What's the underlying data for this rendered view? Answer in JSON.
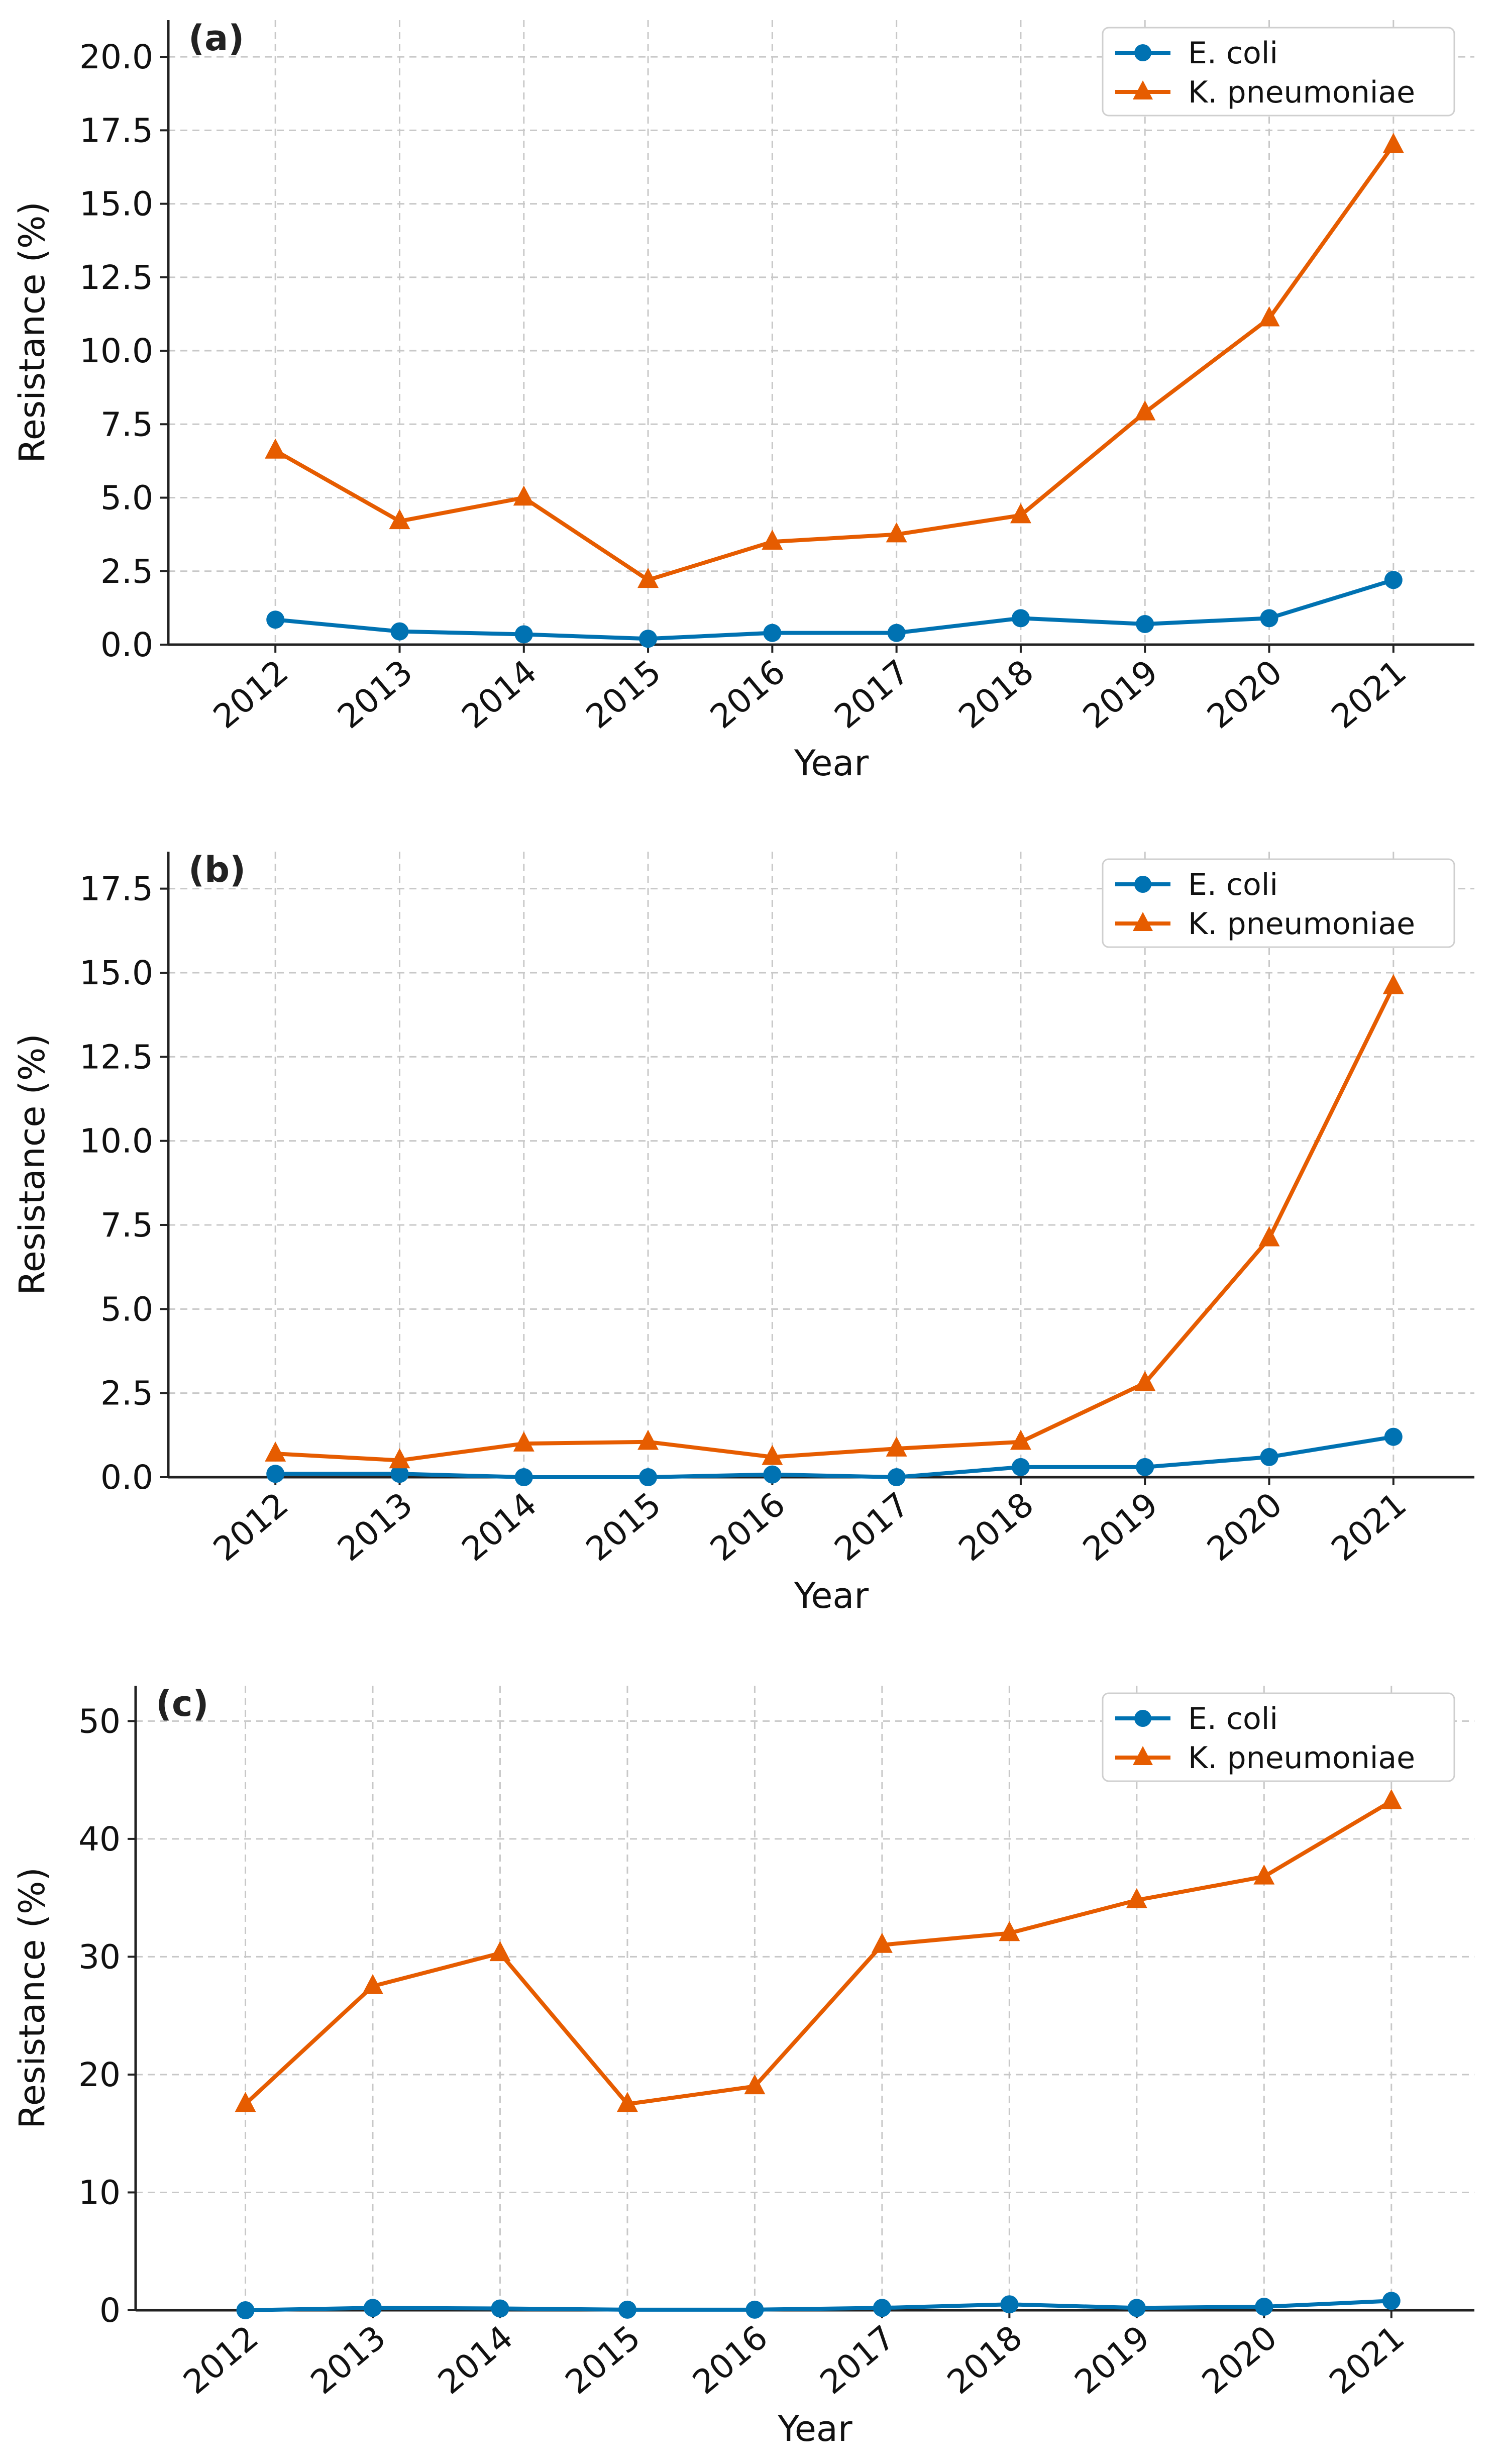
{
  "chart_data": [
    {
      "type": "line",
      "panel_label": "(a)",
      "xlabel": "Year",
      "ylabel": "Resistance (%)",
      "categories": [
        "2012",
        "2013",
        "2014",
        "2015",
        "2016",
        "2017",
        "2018",
        "2019",
        "2020",
        "2021"
      ],
      "ylim": [
        0,
        21.25
      ],
      "yticks": [
        "0.0",
        "2.5",
        "5.0",
        "7.5",
        "10.0",
        "12.5",
        "15.0",
        "17.5",
        "20.0"
      ],
      "grid": true,
      "legend_position": "top-right",
      "series": [
        {
          "name": "E. coli",
          "color": "#0072b2",
          "marker": "circle",
          "values": [
            0.85,
            0.45,
            0.35,
            0.2,
            0.4,
            0.4,
            0.9,
            0.7,
            0.9,
            2.2
          ]
        },
        {
          "name": "K. pneumoniae",
          "color": "#e65c00",
          "marker": "triangle",
          "values": [
            6.6,
            4.2,
            5.0,
            2.2,
            3.5,
            3.75,
            4.4,
            7.9,
            11.1,
            17.0
          ]
        }
      ]
    },
    {
      "type": "line",
      "panel_label": "(b)",
      "xlabel": "Year",
      "ylabel": "Resistance (%)",
      "categories": [
        "2012",
        "2013",
        "2014",
        "2015",
        "2016",
        "2017",
        "2018",
        "2019",
        "2020",
        "2021"
      ],
      "ylim": [
        0,
        18.6
      ],
      "yticks": [
        "0.0",
        "2.5",
        "5.0",
        "7.5",
        "10.0",
        "12.5",
        "15.0",
        "17.5"
      ],
      "grid": true,
      "legend_position": "top-right",
      "series": [
        {
          "name": "E. coli",
          "color": "#0072b2",
          "marker": "circle",
          "values": [
            0.1,
            0.1,
            0.0,
            0.0,
            0.08,
            0.0,
            0.3,
            0.3,
            0.6,
            1.2
          ]
        },
        {
          "name": "K. pneumoniae",
          "color": "#e65c00",
          "marker": "triangle",
          "values": [
            0.7,
            0.5,
            1.0,
            1.05,
            0.6,
            0.85,
            1.05,
            2.8,
            7.1,
            14.6
          ]
        }
      ]
    },
    {
      "type": "line",
      "panel_label": "(c)",
      "xlabel": "Year",
      "ylabel": "Resistance (%)",
      "categories": [
        "2012",
        "2013",
        "2014",
        "2015",
        "2016",
        "2017",
        "2018",
        "2019",
        "2020",
        "2021"
      ],
      "ylim": [
        0,
        53
      ],
      "yticks": [
        "0",
        "10",
        "20",
        "30",
        "40",
        "50"
      ],
      "grid": true,
      "legend_position": "top-right",
      "series": [
        {
          "name": "E. coli",
          "color": "#0072b2",
          "marker": "circle",
          "values": [
            0.0,
            0.2,
            0.15,
            0.05,
            0.05,
            0.2,
            0.5,
            0.2,
            0.3,
            0.8
          ]
        },
        {
          "name": "K. pneumoniae",
          "color": "#e65c00",
          "marker": "triangle",
          "values": [
            17.5,
            27.5,
            30.3,
            17.5,
            19.0,
            31.0,
            32.0,
            34.8,
            36.8,
            43.2
          ]
        }
      ]
    }
  ]
}
